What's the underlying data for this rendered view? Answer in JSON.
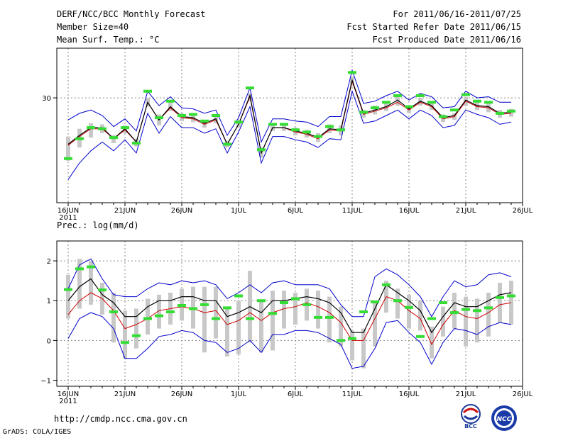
{
  "header": {
    "title": "DERF/NCC/BCC Monthly Forecast",
    "member_size": "Member Size=40",
    "variable": "Mean Surf. Temp.: °C",
    "forecast_period": "For 2011/06/16-2011/07/25",
    "refer_date": "Fcst Started Refer Date 2011/06/15",
    "produced_date": "Fcst Produced Date 2011/06/16"
  },
  "footer": {
    "url": "http://cmdp.ncc.cma.gov.cn",
    "grads": "GrADS: COLA/IGES",
    "bcc_logo_text": "BCC",
    "ncc_logo_text": "NCC"
  },
  "colors": {
    "envelope": "#0000cc",
    "median": "#000000",
    "mean": "#cc0000",
    "box": "#c8c8c8",
    "obs": "#33dd33",
    "grid": "#888888"
  },
  "chart_data": [
    {
      "id": "temperature",
      "type": "line",
      "title": "Mean Surf. Temp.: °C",
      "x_tick_labels": [
        "16JUN",
        "21JUN",
        "26JUN",
        "1JUL",
        "6JUL",
        "11JUL",
        "16JUL",
        "21JUL",
        "26JUL"
      ],
      "year_label": "2011",
      "y_tick_labels": [
        "30"
      ],
      "ylim": [
        20.5,
        34.5
      ],
      "xlim": [
        0,
        39
      ],
      "series": [
        {
          "name": "ensemble max",
          "values": [
            28.0,
            28.6,
            28.9,
            28.4,
            27.4,
            28.1,
            27.0,
            30.6,
            29.3,
            30.1,
            29.1,
            29.0,
            28.6,
            28.9,
            26.6,
            28.2,
            30.9,
            26.0,
            28.1,
            28.1,
            27.9,
            27.8,
            27.4,
            28.3,
            28.3,
            32.5,
            29.5,
            29.7,
            30.2,
            30.6,
            29.8,
            30.4,
            30.1,
            29.1,
            29.2,
            30.6,
            30.0,
            30.1,
            29.6,
            29.6
          ]
        },
        {
          "name": "90th percentile",
          "values": [
            26.5,
            27.2,
            27.7,
            27.6,
            26.6,
            27.5,
            26.3,
            30.0,
            28.5,
            29.6,
            28.6,
            28.5,
            28.0,
            28.4,
            26.1,
            27.9,
            30.4,
            25.5,
            27.6,
            27.6,
            27.3,
            27.1,
            26.8,
            27.6,
            27.5,
            31.9,
            28.9,
            29.3,
            29.5,
            30.1,
            29.3,
            30.0,
            29.6,
            28.5,
            28.6,
            30.1,
            29.6,
            29.6,
            28.9,
            29.0
          ]
        },
        {
          "name": "ensemble median",
          "values": [
            25.8,
            26.6,
            27.3,
            27.3,
            26.3,
            27.2,
            26.0,
            29.6,
            28.0,
            29.2,
            28.3,
            28.2,
            27.7,
            28.1,
            25.8,
            27.6,
            30.2,
            25.0,
            27.3,
            27.3,
            27.0,
            26.8,
            26.4,
            27.2,
            27.1,
            31.6,
            28.6,
            28.9,
            29.2,
            29.8,
            29.0,
            29.7,
            29.3,
            28.2,
            28.4,
            29.8,
            29.3,
            29.2,
            28.6,
            28.7
          ]
        },
        {
          "name": "ensemble mean",
          "values": [
            25.7,
            26.5,
            27.2,
            27.2,
            26.3,
            27.1,
            26.0,
            29.6,
            28.0,
            29.1,
            28.2,
            28.1,
            27.6,
            28.0,
            25.8,
            27.6,
            30.1,
            25.0,
            27.3,
            27.3,
            26.9,
            26.7,
            26.3,
            27.1,
            27.0,
            31.5,
            28.5,
            28.8,
            29.1,
            29.6,
            28.9,
            29.6,
            29.2,
            28.1,
            28.3,
            29.7,
            29.2,
            29.1,
            28.5,
            28.6
          ]
        },
        {
          "name": "10th percentile",
          "values": [
            24.3,
            25.5,
            26.4,
            26.8,
            25.9,
            26.8,
            25.6,
            29.2,
            27.5,
            28.8,
            27.9,
            27.8,
            27.3,
            27.7,
            25.5,
            27.3,
            29.7,
            24.6,
            27.0,
            27.0,
            26.6,
            26.4,
            26.0,
            26.8,
            26.6,
            31.1,
            28.2,
            28.5,
            28.8,
            29.3,
            28.6,
            29.3,
            28.9,
            27.8,
            28.0,
            29.3,
            28.9,
            28.7,
            28.2,
            28.3
          ]
        },
        {
          "name": "ensemble min",
          "values": [
            22.6,
            24.1,
            25.2,
            26.0,
            25.2,
            26.2,
            25.0,
            28.6,
            26.8,
            28.3,
            27.3,
            27.3,
            26.8,
            27.2,
            25.0,
            26.9,
            29.2,
            24.1,
            26.5,
            26.5,
            26.2,
            26.0,
            25.5,
            26.3,
            26.2,
            30.6,
            27.7,
            27.9,
            28.4,
            28.9,
            28.1,
            28.9,
            28.4,
            27.3,
            27.5,
            28.9,
            28.5,
            28.2,
            27.6,
            27.8
          ]
        },
        {
          "name": "observed",
          "values": [
            24.5,
            26.3,
            27.3,
            27.2,
            26.4,
            27.3,
            25.9,
            30.6,
            28.2,
            29.7,
            28.4,
            28.5,
            27.9,
            28.4,
            25.8,
            27.8,
            30.9,
            25.3,
            27.6,
            27.6,
            27.1,
            26.9,
            26.5,
            27.4,
            27.1,
            32.3,
            28.7,
            29.1,
            29.6,
            30.2,
            29.2,
            30.2,
            29.6,
            28.3,
            28.9,
            30.3,
            29.7,
            29.6,
            28.6,
            28.8
          ]
        }
      ]
    },
    {
      "id": "precipitation",
      "type": "line",
      "title": "Prec.: log(mm/d)",
      "x_tick_labels": [
        "16JUN",
        "21JUN",
        "26JUN",
        "1JUL",
        "6JUL",
        "11JUL",
        "16JUL",
        "21JUL",
        "26JUL"
      ],
      "year_label": "2011",
      "y_tick_labels": [
        "2",
        "1",
        "0",
        "−1"
      ],
      "ylim": [
        -1.15,
        2.5
      ],
      "xlim": [
        0,
        39
      ],
      "series": [
        {
          "name": "ensemble max",
          "values": [
            1.3,
            1.9,
            2.05,
            1.55,
            1.15,
            1.1,
            1.1,
            1.3,
            1.45,
            1.4,
            1.5,
            1.45,
            1.5,
            1.4,
            1.05,
            1.2,
            1.4,
            1.2,
            1.45,
            1.5,
            1.4,
            1.4,
            1.4,
            1.3,
            0.9,
            0.6,
            0.6,
            1.6,
            1.8,
            1.65,
            1.4,
            1.1,
            0.6,
            1.1,
            1.5,
            1.35,
            1.4,
            1.65,
            1.7,
            1.6
          ]
        },
        {
          "name": "ensemble median",
          "values": [
            1.0,
            1.35,
            1.55,
            1.15,
            0.95,
            0.6,
            0.6,
            0.85,
            1.0,
            1.0,
            1.1,
            1.1,
            1.0,
            1.0,
            0.6,
            0.7,
            0.85,
            0.7,
            1.0,
            1.0,
            1.05,
            1.1,
            1.05,
            0.95,
            0.7,
            0.2,
            0.2,
            0.8,
            1.4,
            1.2,
            1.0,
            0.75,
            0.2,
            0.6,
            0.95,
            0.85,
            0.85,
            1.0,
            1.15,
            1.2
          ]
        },
        {
          "name": "ensemble mean",
          "values": [
            0.65,
            1.0,
            1.2,
            1.05,
            0.75,
            0.3,
            0.4,
            0.55,
            0.75,
            0.8,
            0.85,
            0.8,
            0.7,
            0.75,
            0.4,
            0.5,
            0.7,
            0.5,
            0.7,
            0.8,
            0.85,
            0.95,
            0.85,
            0.7,
            0.45,
            0.0,
            0.0,
            0.55,
            1.1,
            1.0,
            0.75,
            0.55,
            -0.1,
            0.4,
            0.75,
            0.6,
            0.55,
            0.7,
            0.9,
            0.95
          ]
        },
        {
          "name": "ensemble min",
          "values": [
            0.05,
            0.55,
            0.7,
            0.6,
            0.3,
            -0.45,
            -0.45,
            -0.2,
            0.1,
            0.15,
            0.25,
            0.2,
            0.0,
            -0.05,
            -0.3,
            -0.2,
            0.0,
            -0.3,
            0.15,
            0.15,
            0.25,
            0.25,
            0.2,
            0.05,
            -0.1,
            -0.7,
            -0.65,
            -0.2,
            0.45,
            0.5,
            0.2,
            -0.05,
            -0.6,
            -0.05,
            0.3,
            0.25,
            0.15,
            0.35,
            0.45,
            0.4
          ]
        },
        {
          "name": "box upper",
          "values": [
            1.65,
            2.05,
            2.0,
            1.45,
            1.2,
            0.75,
            0.8,
            1.05,
            1.15,
            1.2,
            1.3,
            1.35,
            1.35,
            1.35,
            0.85,
            1.0,
            1.75,
            1.0,
            1.25,
            1.25,
            1.2,
            1.3,
            1.25,
            1.1,
            0.85,
            0.25,
            0.3,
            0.95,
            1.5,
            1.3,
            1.15,
            1.0,
            0.35,
            0.85,
            1.2,
            1.1,
            1.05,
            1.2,
            1.45,
            1.5
          ]
        },
        {
          "name": "box lower",
          "values": [
            0.55,
            0.8,
            0.9,
            0.65,
            -0.05,
            -0.45,
            -0.2,
            0.15,
            0.3,
            0.4,
            0.5,
            0.3,
            -0.3,
            0.05,
            -0.4,
            -0.35,
            -0.05,
            -0.3,
            -0.25,
            0.3,
            0.4,
            0.5,
            0.3,
            -0.05,
            -0.15,
            -0.5,
            -0.7,
            -0.15,
            0.7,
            0.55,
            0.3,
            0.25,
            -0.45,
            0.1,
            0.3,
            -0.15,
            -0.05,
            0.1,
            0.45,
            0.4
          ]
        },
        {
          "name": "observed",
          "values": [
            1.28,
            1.8,
            1.85,
            1.27,
            0.72,
            -0.05,
            0.12,
            0.55,
            0.62,
            0.72,
            0.88,
            0.8,
            0.9,
            0.55,
            0.82,
            1.12,
            0.55,
            1.0,
            0.68,
            0.95,
            1.05,
            0.9,
            0.58,
            0.58,
            0.0,
            0.05,
            0.72,
            0.97,
            1.4,
            1.0,
            0.83,
            0.1,
            0.55,
            0.95,
            0.7,
            0.78,
            0.75,
            0.82,
            1.08,
            1.12
          ]
        }
      ]
    }
  ]
}
